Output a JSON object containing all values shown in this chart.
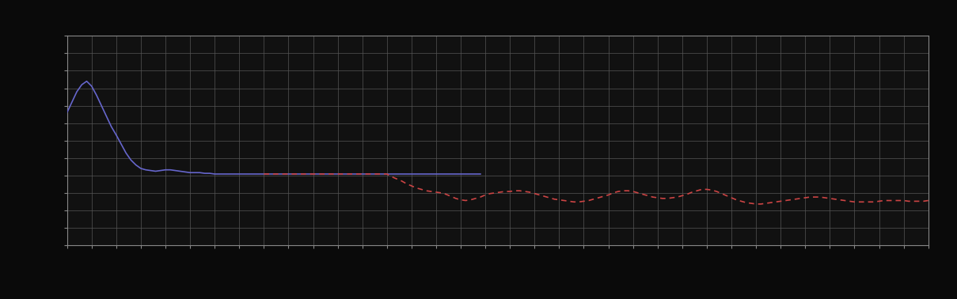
{
  "background_color": "#0a0a0a",
  "axes_bg_color": "#0a0a0a",
  "grid_color": "#555555",
  "plot_area_bg": "#111111",
  "blue_line_color": "#6666cc",
  "red_line_color": "#cc4444",
  "spine_color": "#888888",
  "tick_color": "#888888",
  "figsize": [
    12.09,
    3.78
  ],
  "dpi": 100,
  "xlim": [
    0,
    350
  ],
  "ylim": [
    -0.5,
    2.5
  ],
  "blue_x": [
    0,
    2,
    4,
    6,
    8,
    10,
    12,
    14,
    16,
    18,
    20,
    22,
    24,
    26,
    28,
    30,
    32,
    34,
    36,
    38,
    40,
    42,
    44,
    46,
    48,
    50,
    52,
    54,
    56,
    58,
    60,
    62,
    64,
    66,
    68,
    70,
    72,
    74,
    76,
    78,
    80,
    82,
    84,
    86,
    88,
    90,
    92,
    94,
    96,
    98,
    100,
    102,
    104,
    106,
    108,
    110,
    112,
    114,
    116,
    118,
    120,
    122,
    124,
    126,
    128,
    130,
    132,
    134,
    136,
    138,
    140,
    142,
    144,
    146,
    148,
    150,
    152,
    154,
    156,
    158,
    160,
    162,
    164,
    166,
    168
  ],
  "blue_y": [
    1.4,
    1.55,
    1.7,
    1.8,
    1.85,
    1.78,
    1.65,
    1.5,
    1.35,
    1.2,
    1.08,
    0.95,
    0.82,
    0.72,
    0.65,
    0.6,
    0.58,
    0.57,
    0.56,
    0.57,
    0.58,
    0.58,
    0.57,
    0.56,
    0.55,
    0.54,
    0.54,
    0.54,
    0.53,
    0.53,
    0.52,
    0.52,
    0.52,
    0.52,
    0.52,
    0.52,
    0.52,
    0.52,
    0.52,
    0.52,
    0.52,
    0.52,
    0.52,
    0.52,
    0.52,
    0.52,
    0.52,
    0.52,
    0.52,
    0.52,
    0.52,
    0.52,
    0.52,
    0.52,
    0.52,
    0.52,
    0.52,
    0.52,
    0.52,
    0.52,
    0.52,
    0.52,
    0.52,
    0.52,
    0.52,
    0.52,
    0.52,
    0.52,
    0.52,
    0.52,
    0.52,
    0.52,
    0.52,
    0.52,
    0.52,
    0.52,
    0.52,
    0.52,
    0.52,
    0.52,
    0.52,
    0.52,
    0.52,
    0.52,
    0.52
  ],
  "red_x": [
    80,
    82,
    84,
    86,
    88,
    90,
    92,
    94,
    96,
    98,
    100,
    102,
    104,
    106,
    108,
    110,
    112,
    114,
    116,
    118,
    120,
    122,
    124,
    126,
    128,
    130,
    132,
    134,
    136,
    138,
    140,
    142,
    144,
    146,
    148,
    150,
    152,
    154,
    156,
    158,
    160,
    162,
    164,
    166,
    168,
    170,
    172,
    174,
    176,
    178,
    180,
    182,
    184,
    186,
    188,
    190,
    192,
    194,
    196,
    198,
    200,
    202,
    204,
    206,
    208,
    210,
    212,
    214,
    216,
    218,
    220,
    222,
    224,
    226,
    228,
    230,
    232,
    234,
    236,
    238,
    240,
    242,
    244,
    246,
    248,
    250,
    252,
    254,
    256,
    258,
    260,
    262,
    264,
    266,
    268,
    270,
    272,
    274,
    276,
    278,
    280,
    282,
    284,
    286,
    288,
    290,
    292,
    294,
    296,
    298,
    300,
    302,
    304,
    306,
    308,
    310,
    312,
    314,
    316,
    318,
    320,
    322,
    324,
    326,
    328,
    330,
    332,
    334,
    336,
    338,
    340,
    342,
    344,
    346,
    348,
    350
  ],
  "red_y": [
    0.52,
    0.52,
    0.52,
    0.52,
    0.52,
    0.52,
    0.52,
    0.52,
    0.52,
    0.52,
    0.52,
    0.52,
    0.52,
    0.52,
    0.52,
    0.52,
    0.52,
    0.52,
    0.52,
    0.52,
    0.52,
    0.52,
    0.52,
    0.52,
    0.52,
    0.52,
    0.48,
    0.45,
    0.42,
    0.38,
    0.35,
    0.32,
    0.3,
    0.28,
    0.27,
    0.26,
    0.25,
    0.23,
    0.2,
    0.17,
    0.15,
    0.14,
    0.15,
    0.17,
    0.19,
    0.22,
    0.24,
    0.25,
    0.26,
    0.27,
    0.27,
    0.28,
    0.28,
    0.27,
    0.26,
    0.24,
    0.22,
    0.2,
    0.18,
    0.16,
    0.15,
    0.14,
    0.13,
    0.12,
    0.12,
    0.13,
    0.14,
    0.16,
    0.18,
    0.2,
    0.22,
    0.25,
    0.27,
    0.28,
    0.28,
    0.27,
    0.25,
    0.23,
    0.21,
    0.19,
    0.18,
    0.17,
    0.17,
    0.18,
    0.19,
    0.21,
    0.23,
    0.26,
    0.28,
    0.3,
    0.3,
    0.29,
    0.27,
    0.24,
    0.21,
    0.18,
    0.15,
    0.13,
    0.11,
    0.1,
    0.09,
    0.09,
    0.1,
    0.11,
    0.12,
    0.13,
    0.14,
    0.15,
    0.16,
    0.17,
    0.18,
    0.19,
    0.19,
    0.19,
    0.18,
    0.17,
    0.16,
    0.15,
    0.14,
    0.13,
    0.12,
    0.12,
    0.12,
    0.12,
    0.12,
    0.13,
    0.14,
    0.14,
    0.14,
    0.14,
    0.14,
    0.13,
    0.13,
    0.13,
    0.13,
    0.14
  ]
}
